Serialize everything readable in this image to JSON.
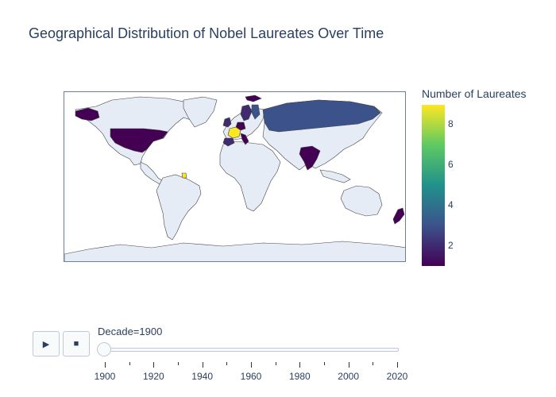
{
  "title": "Geographical Distribution of Nobel Laureates Over Time",
  "colors": {
    "land": "#e5ecf6",
    "coast": "#444444",
    "frame": "#6e7f92",
    "scale": [
      "#440154",
      "#3b528b",
      "#21918c",
      "#5ec962",
      "#fde725"
    ]
  },
  "colorbar": {
    "title": "Number of Laureates",
    "ticks": [
      "2",
      "4",
      "6",
      "8"
    ],
    "range": [
      1,
      9
    ]
  },
  "map_data": {
    "type": "choropleth",
    "projection": "equirectangular",
    "regions": [
      {
        "region": "United States",
        "value": 1
      },
      {
        "region": "Alaska",
        "value": 1
      },
      {
        "region": "Russia",
        "value": 3
      },
      {
        "region": "India",
        "value": 1
      },
      {
        "region": "New Zealand",
        "value": 1
      },
      {
        "region": "United Kingdom",
        "value": 2
      },
      {
        "region": "France",
        "value": 9
      },
      {
        "region": "Germany",
        "value": 1
      },
      {
        "region": "Spain",
        "value": 2
      },
      {
        "region": "Italy",
        "value": 1
      },
      {
        "region": "Sweden",
        "value": 2
      },
      {
        "region": "Finland",
        "value": 3
      },
      {
        "region": "Svalbard",
        "value": 1
      },
      {
        "region": "French Guiana",
        "value": 9
      }
    ]
  },
  "controls": {
    "play_icon": "play-icon",
    "stop_icon": "stop-icon",
    "play_glyph": "▶",
    "stop_glyph": "■"
  },
  "slider": {
    "current_label": "Decade=1900",
    "min": 1900,
    "max": 2020,
    "step": 10,
    "value": 1900,
    "tick_labels": [
      "1900",
      "1920",
      "1940",
      "1960",
      "1980",
      "2000",
      "2020"
    ]
  }
}
